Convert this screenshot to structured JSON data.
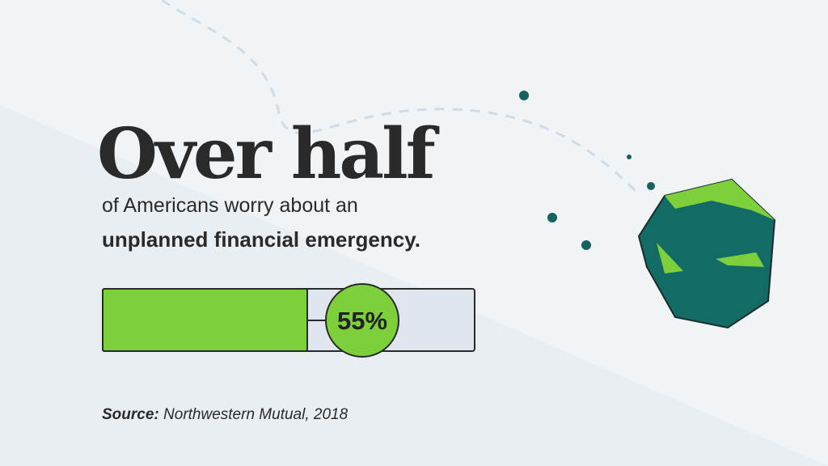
{
  "headline": "Over half",
  "subline": "of Americans worry about an",
  "emphasis": "unplanned financial emergency.",
  "stat": {
    "value": 55,
    "label": "55%"
  },
  "source": {
    "label": "Source:",
    "text": "Northwestern Mutual, 2018"
  }
}
